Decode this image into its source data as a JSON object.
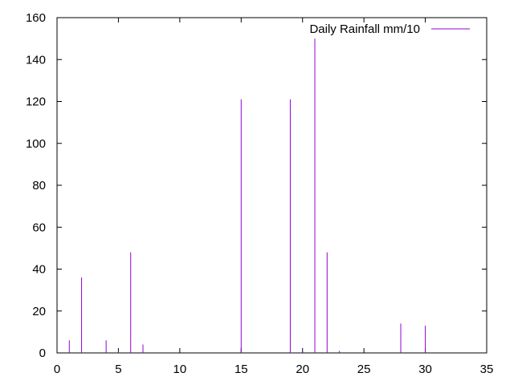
{
  "chart_data": {
    "type": "bar",
    "style": "impulses",
    "series": [
      {
        "name": "Daily Rainfall mm/10",
        "color": "#9400d3",
        "x": [
          1,
          2,
          4,
          5,
          6,
          7,
          15,
          19,
          20,
          21,
          22,
          23,
          28,
          30
        ],
        "values": [
          6,
          36,
          6,
          1,
          48,
          4,
          121,
          121,
          1,
          150,
          48,
          1,
          14,
          13
        ]
      }
    ],
    "xlim": [
      0,
      35
    ],
    "ylim": [
      0,
      160
    ],
    "xticks": [
      0,
      5,
      10,
      15,
      20,
      25,
      30,
      35
    ],
    "yticks": [
      0,
      20,
      40,
      60,
      80,
      100,
      120,
      140,
      160
    ],
    "grid": false,
    "legend_position": "top-right"
  }
}
